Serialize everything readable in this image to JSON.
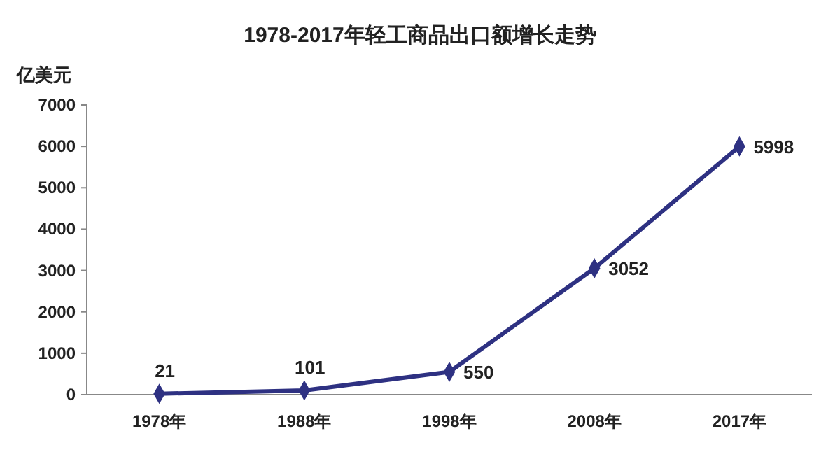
{
  "chart_data": {
    "type": "line",
    "title": "1978-2017年轻工商品出口额增长走势",
    "ylabel": "亿美元",
    "categories": [
      "1978年",
      "1988年",
      "1998年",
      "2008年",
      "2017年"
    ],
    "series": [
      {
        "color": "#2e3182",
        "values": [
          21,
          101,
          550,
          3052,
          5998
        ]
      }
    ],
    "ylim": [
      0,
      7000
    ],
    "yticks": [
      0,
      1000,
      2000,
      3000,
      4000,
      5000,
      6000,
      7000
    ],
    "grid": false,
    "marker": "diamond",
    "line_style": "solid",
    "data_labels": true
  }
}
